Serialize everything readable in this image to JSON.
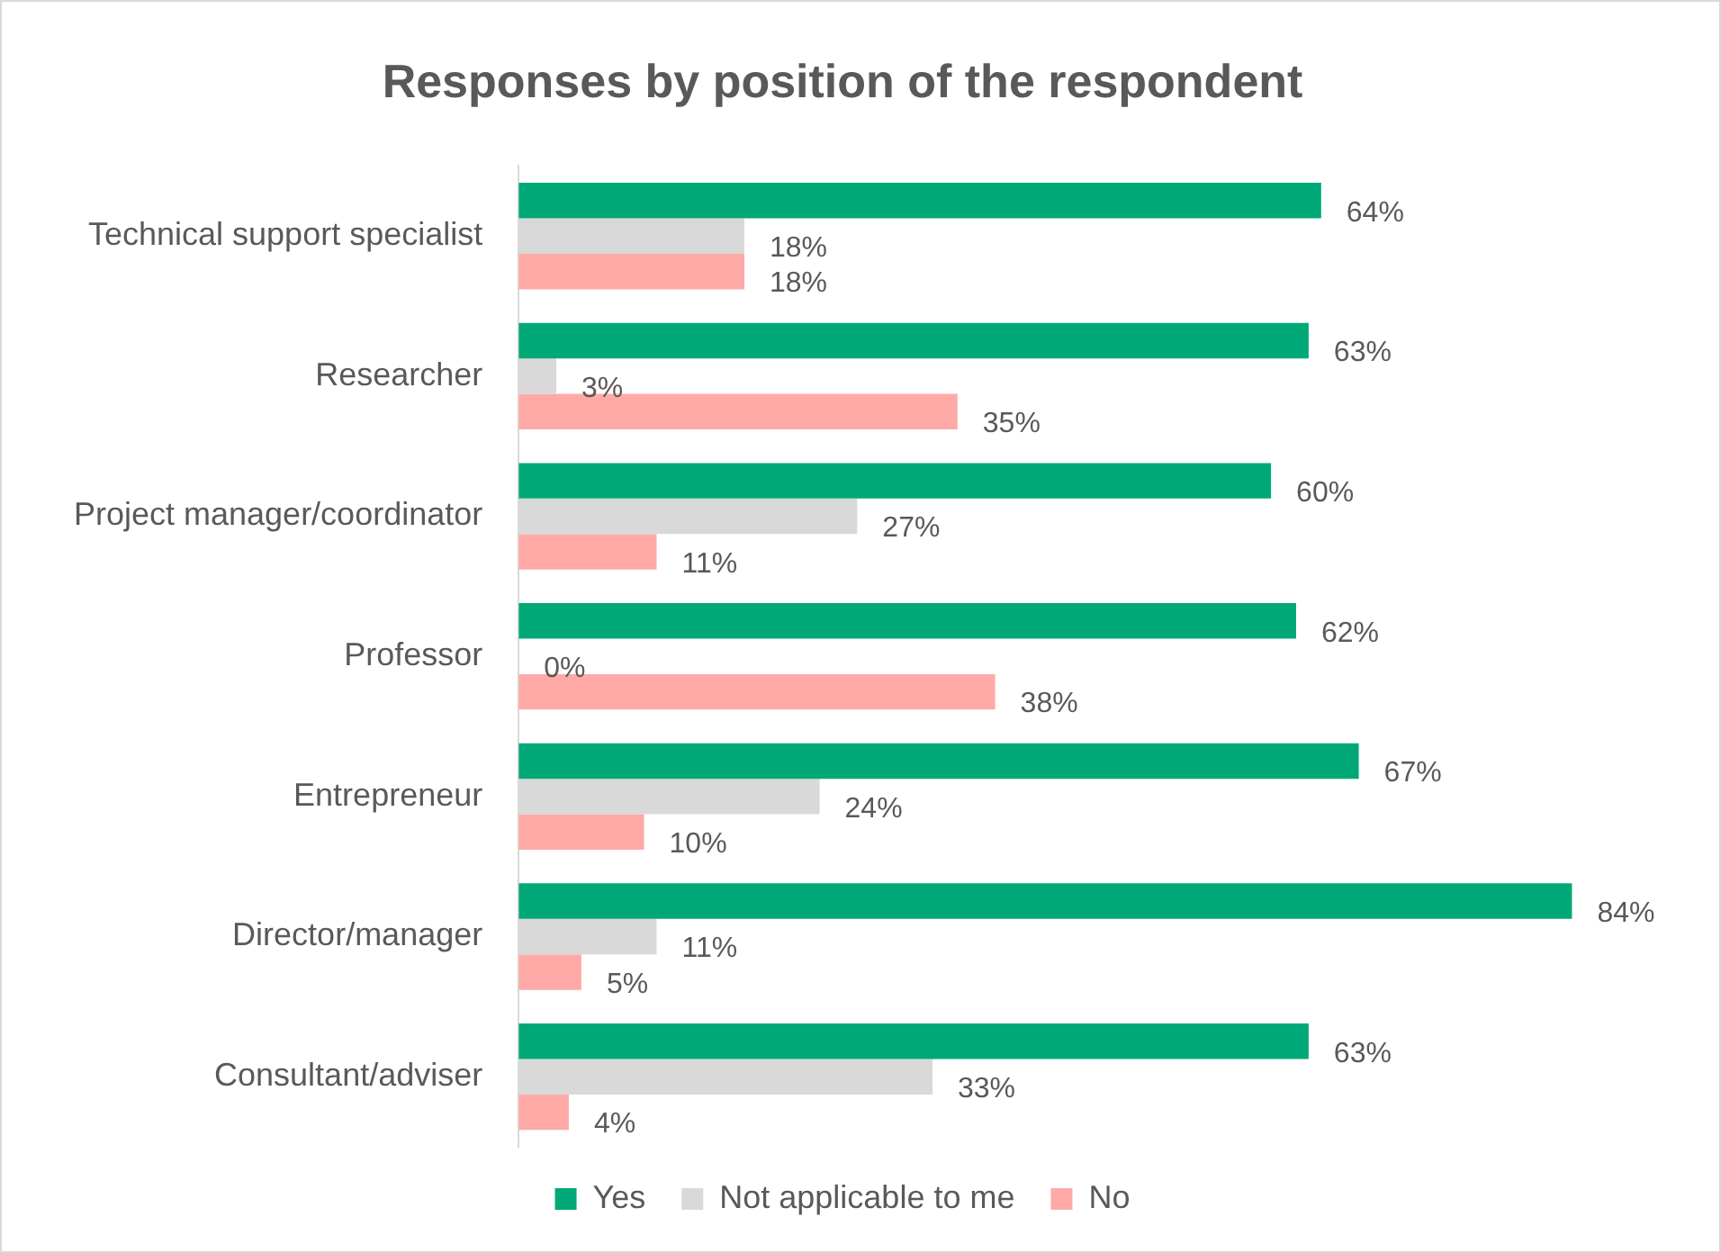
{
  "chart_data": {
    "type": "bar",
    "orientation": "horizontal",
    "title": "Responses by position of the respondent",
    "categories": [
      "Technical support specialist",
      "Researcher",
      "Project manager/coordinator",
      "Professor",
      "Entrepreneur",
      "Director/manager",
      "Consultant/adviser"
    ],
    "series": [
      {
        "name": "Yes",
        "color": "#00a878",
        "values": [
          64,
          63,
          60,
          62,
          67,
          84,
          63
        ],
        "value_labels": [
          "64%",
          "63%",
          "60%",
          "62%",
          "67%",
          "84%",
          "63%"
        ]
      },
      {
        "name": "Not applicable to me",
        "color": "#d9d9d9",
        "values": [
          18,
          3,
          27,
          0,
          24,
          11,
          33
        ],
        "value_labels": [
          "18%",
          "3%",
          "27%",
          "0%",
          "24%",
          "11%",
          "33%"
        ]
      },
      {
        "name": "No",
        "color": "#ffaaa6",
        "values": [
          18,
          35,
          11,
          38,
          10,
          5,
          4
        ],
        "value_labels": [
          "18%",
          "35%",
          "11%",
          "38%",
          "10%",
          "5%",
          "4%"
        ]
      }
    ],
    "legend": "bottom",
    "tick_labels": "y"
  }
}
